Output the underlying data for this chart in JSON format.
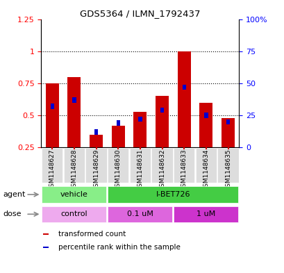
{
  "title": "GDS5364 / ILMN_1792437",
  "samples": [
    "GSM1148627",
    "GSM1148628",
    "GSM1148629",
    "GSM1148630",
    "GSM1148631",
    "GSM1148632",
    "GSM1148633",
    "GSM1148634",
    "GSM1148635"
  ],
  "red_values": [
    0.75,
    0.8,
    0.35,
    0.42,
    0.53,
    0.65,
    1.0,
    0.6,
    0.48
  ],
  "blue_values": [
    0.57,
    0.62,
    0.37,
    0.44,
    0.47,
    0.54,
    0.72,
    0.5,
    0.45
  ],
  "ylim": [
    0.25,
    1.25
  ],
  "yticks_left": [
    0.25,
    0.5,
    0.75,
    1.0,
    1.25
  ],
  "yticks_left_labels": [
    "0.25",
    "0.5",
    "0.75",
    "1",
    "1.25"
  ],
  "yticks_right_labels": [
    "0",
    "25",
    "50",
    "75",
    "100%"
  ],
  "bar_width": 0.6,
  "red_color": "#cc0000",
  "blue_color": "#0000cc",
  "agent_groups": [
    {
      "label": "vehicle",
      "start": 0,
      "end": 3,
      "color": "#88ee88"
    },
    {
      "label": "I-BET726",
      "start": 3,
      "end": 9,
      "color": "#44cc44"
    }
  ],
  "dose_groups": [
    {
      "label": "control",
      "start": 0,
      "end": 3,
      "color": "#eeaaee"
    },
    {
      "label": "0.1 uM",
      "start": 3,
      "end": 6,
      "color": "#dd66dd"
    },
    {
      "label": "1 uM",
      "start": 6,
      "end": 9,
      "color": "#cc33cc"
    }
  ],
  "legend_items": [
    {
      "color": "#cc0000",
      "label": "transformed count"
    },
    {
      "color": "#0000cc",
      "label": "percentile rank within the sample"
    }
  ],
  "grid_yticks": [
    0.5,
    0.75,
    1.0
  ],
  "bar_bottom": 0.25,
  "bg_color": "#dddddd"
}
